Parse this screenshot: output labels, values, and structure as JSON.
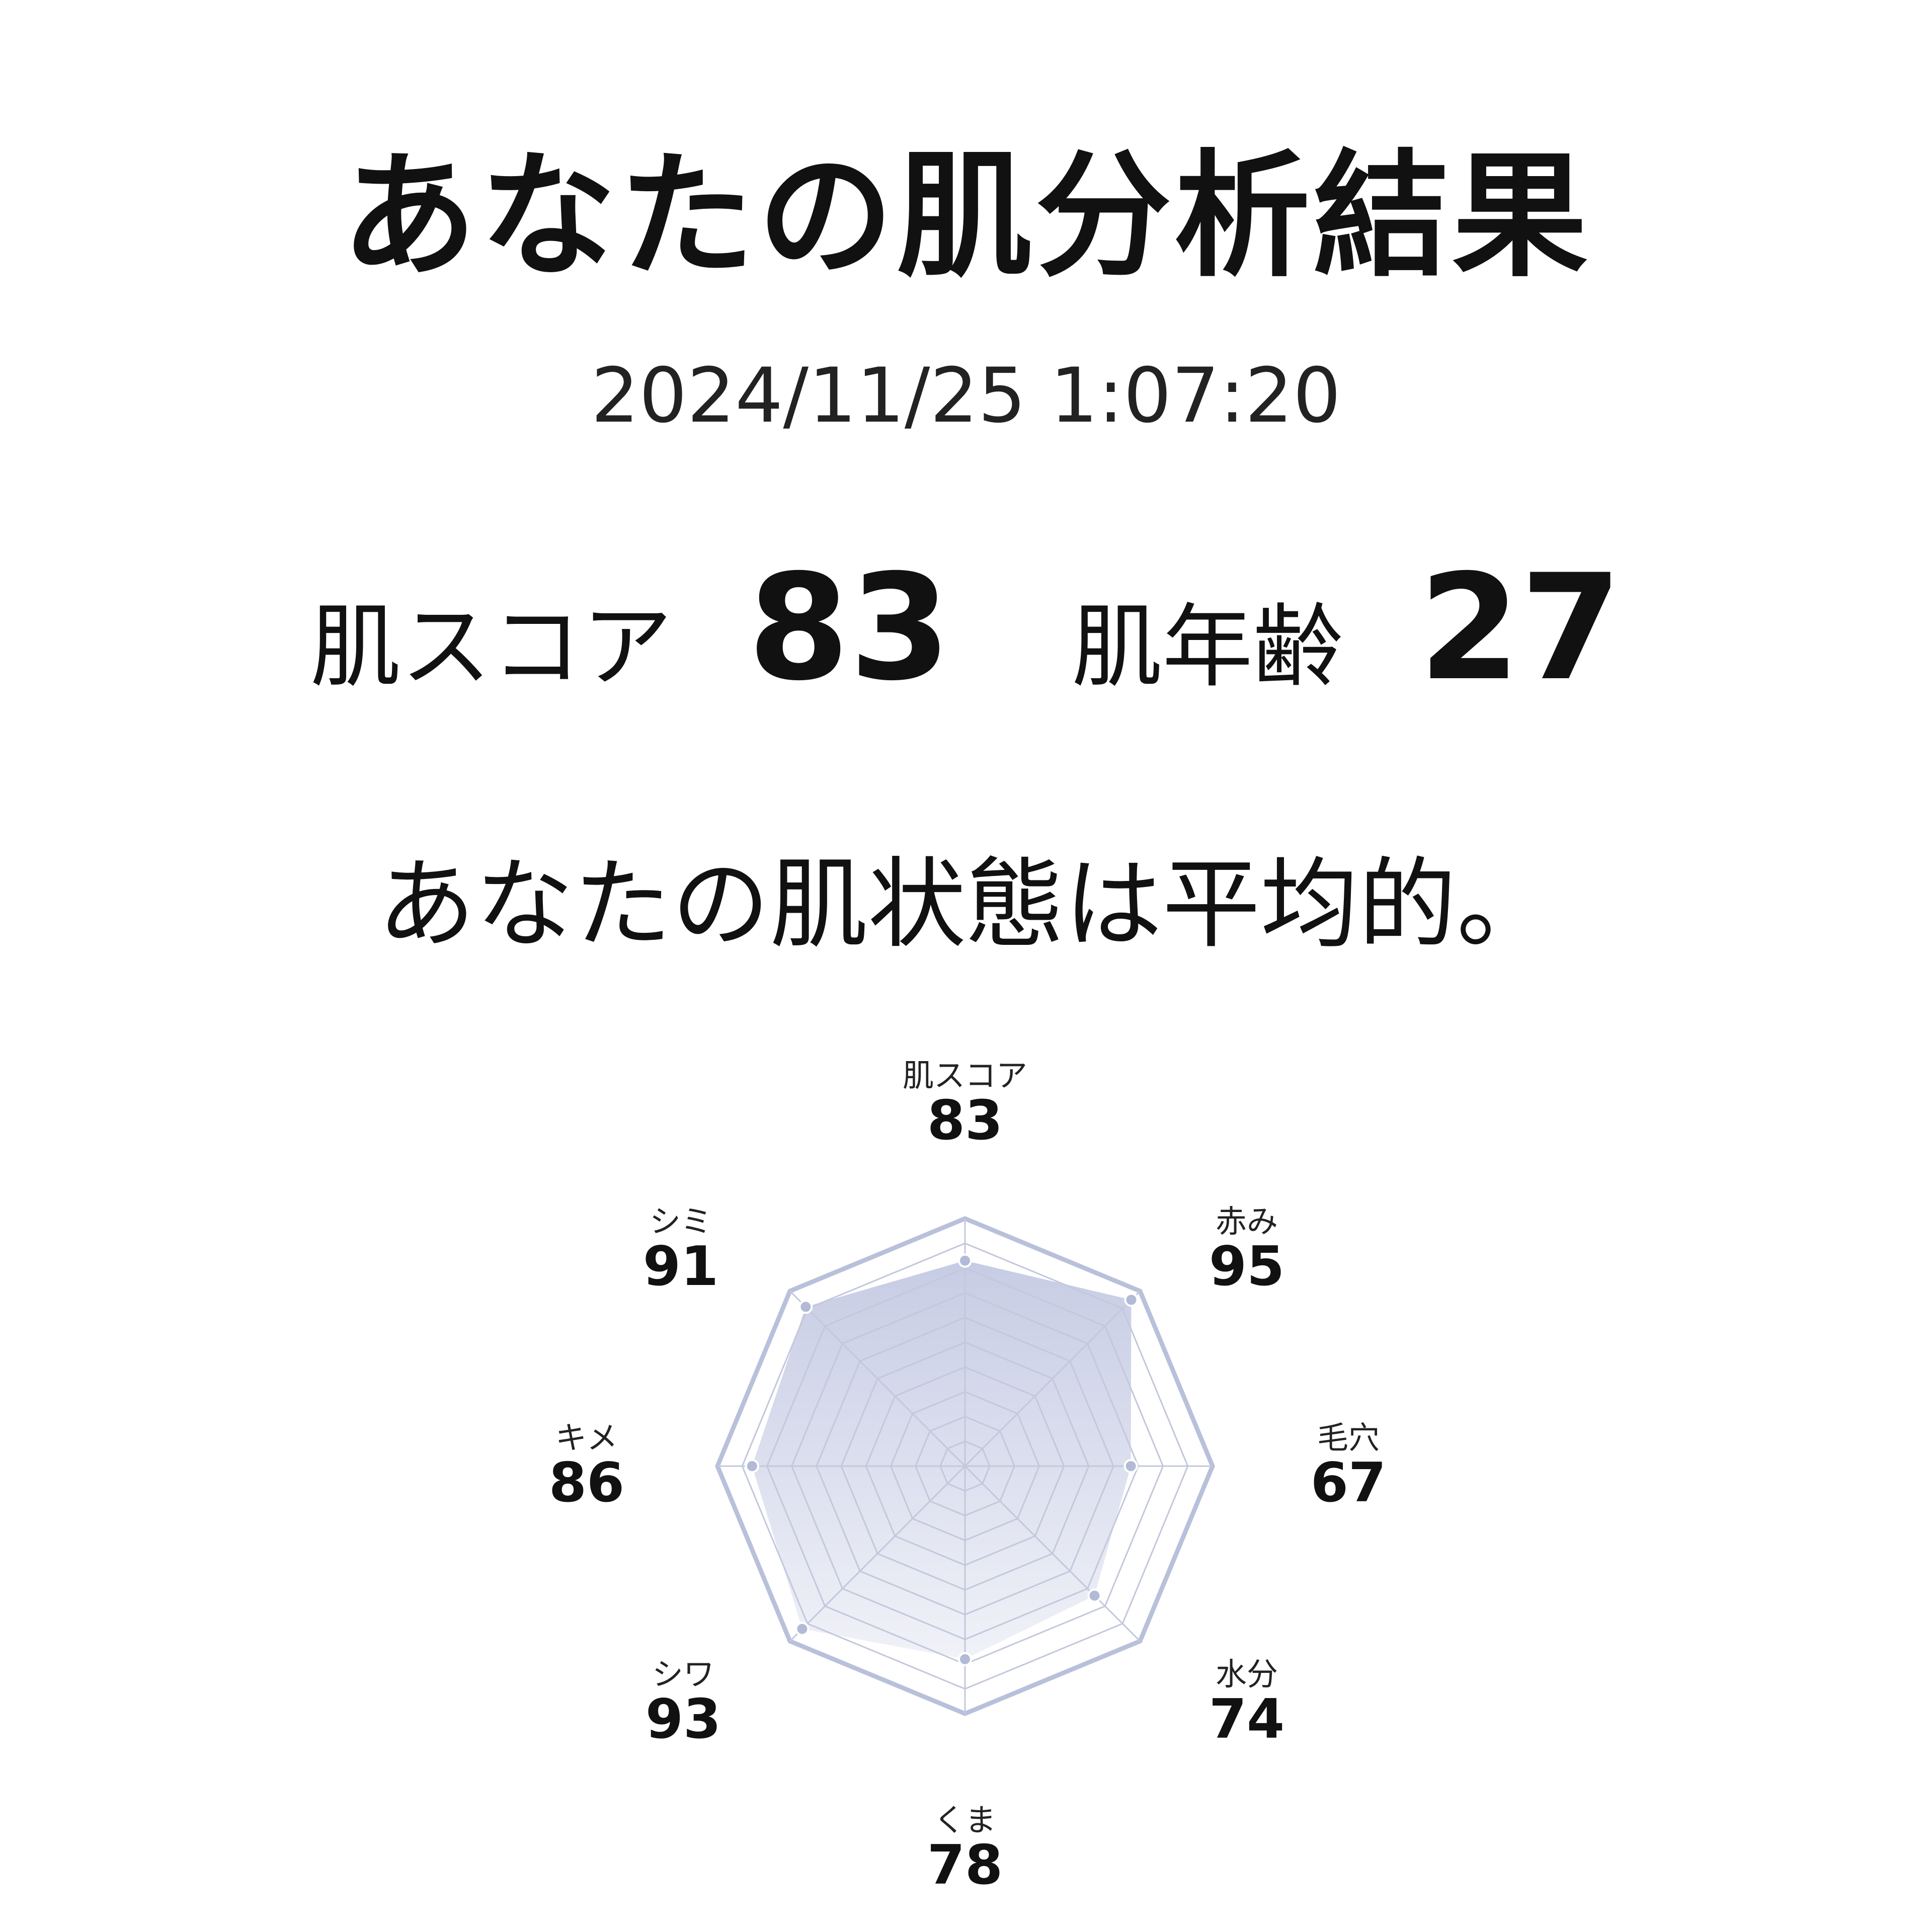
{
  "header": {
    "title": "あなたの肌分析結果",
    "datetime": "2024/11/25 1:07:20"
  },
  "summary": {
    "score_label": "肌スコア",
    "score_value": "83",
    "age_label": "肌年齢",
    "age_value": "27"
  },
  "message": "あなたの肌状態は平均的。",
  "chart_data": {
    "type": "radar",
    "categories": [
      "肌スコア",
      "赤み",
      "毛穴",
      "水分",
      "くま",
      "シワ",
      "キメ",
      "シミ"
    ],
    "values": [
      83,
      95,
      67,
      74,
      78,
      93,
      86,
      91
    ],
    "value_labels": [
      "83",
      "95",
      "67",
      "74",
      "78",
      "93",
      "86",
      "91"
    ],
    "rlim": [
      0,
      100
    ],
    "grid_rings": 10,
    "colors": {
      "stroke": "#b9c0da",
      "grid": "#c3c8dc",
      "fill_top": "#c6cce4",
      "fill_bottom": "#f1f2f8",
      "point": "#b3bad6"
    }
  }
}
